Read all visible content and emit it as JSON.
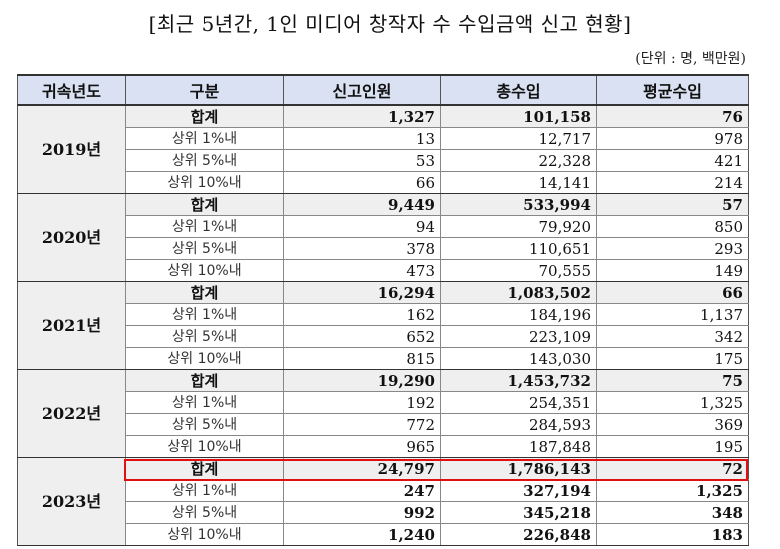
{
  "title": "[최근 5년간, 1인 미디어 창작자 수 수입금액 신고 현황]",
  "unit_note": "(단위 : 명, 백만원)",
  "table": {
    "headers": [
      "귀속년도",
      "구분",
      "신고인원",
      "총수입",
      "평균수입"
    ],
    "groups": [
      {
        "year": "2019년",
        "rows": [
          {
            "category": "합계",
            "reporters": "1,327",
            "total_income": "101,158",
            "avg_income": "76"
          },
          {
            "category": "상위 1%내",
            "reporters": "13",
            "total_income": "12,717",
            "avg_income": "978"
          },
          {
            "category": "상위 5%내",
            "reporters": "53",
            "total_income": "22,328",
            "avg_income": "421"
          },
          {
            "category": "상위 10%내",
            "reporters": "66",
            "total_income": "14,141",
            "avg_income": "214"
          }
        ]
      },
      {
        "year": "2020년",
        "rows": [
          {
            "category": "합계",
            "reporters": "9,449",
            "total_income": "533,994",
            "avg_income": "57"
          },
          {
            "category": "상위 1%내",
            "reporters": "94",
            "total_income": "79,920",
            "avg_income": "850"
          },
          {
            "category": "상위 5%내",
            "reporters": "378",
            "total_income": "110,651",
            "avg_income": "293"
          },
          {
            "category": "상위 10%내",
            "reporters": "473",
            "total_income": "70,555",
            "avg_income": "149"
          }
        ]
      },
      {
        "year": "2021년",
        "rows": [
          {
            "category": "합계",
            "reporters": "16,294",
            "total_income": "1,083,502",
            "avg_income": "66"
          },
          {
            "category": "상위 1%내",
            "reporters": "162",
            "total_income": "184,196",
            "avg_income": "1,137"
          },
          {
            "category": "상위 5%내",
            "reporters": "652",
            "total_income": "223,109",
            "avg_income": "342"
          },
          {
            "category": "상위 10%내",
            "reporters": "815",
            "total_income": "143,030",
            "avg_income": "175"
          }
        ]
      },
      {
        "year": "2022년",
        "rows": [
          {
            "category": "합계",
            "reporters": "19,290",
            "total_income": "1,453,732",
            "avg_income": "75"
          },
          {
            "category": "상위 1%내",
            "reporters": "192",
            "total_income": "254,351",
            "avg_income": "1,325"
          },
          {
            "category": "상위 5%내",
            "reporters": "772",
            "total_income": "284,593",
            "avg_income": "369"
          },
          {
            "category": "상위 10%내",
            "reporters": "965",
            "total_income": "187,848",
            "avg_income": "195"
          }
        ]
      },
      {
        "year": "2023년",
        "rows": [
          {
            "category": "합계",
            "reporters": "24,797",
            "total_income": "1,786,143",
            "avg_income": "72"
          },
          {
            "category": "상위 1%내",
            "reporters": "247",
            "total_income": "327,194",
            "avg_income": "1,325"
          },
          {
            "category": "상위 5%내",
            "reporters": "992",
            "total_income": "345,218",
            "avg_income": "348"
          },
          {
            "category": "상위 10%내",
            "reporters": "1,240",
            "total_income": "226,848",
            "avg_income": "183"
          }
        ]
      }
    ]
  },
  "highlight": {
    "row": "2023년 합계",
    "color": "#e01010"
  }
}
